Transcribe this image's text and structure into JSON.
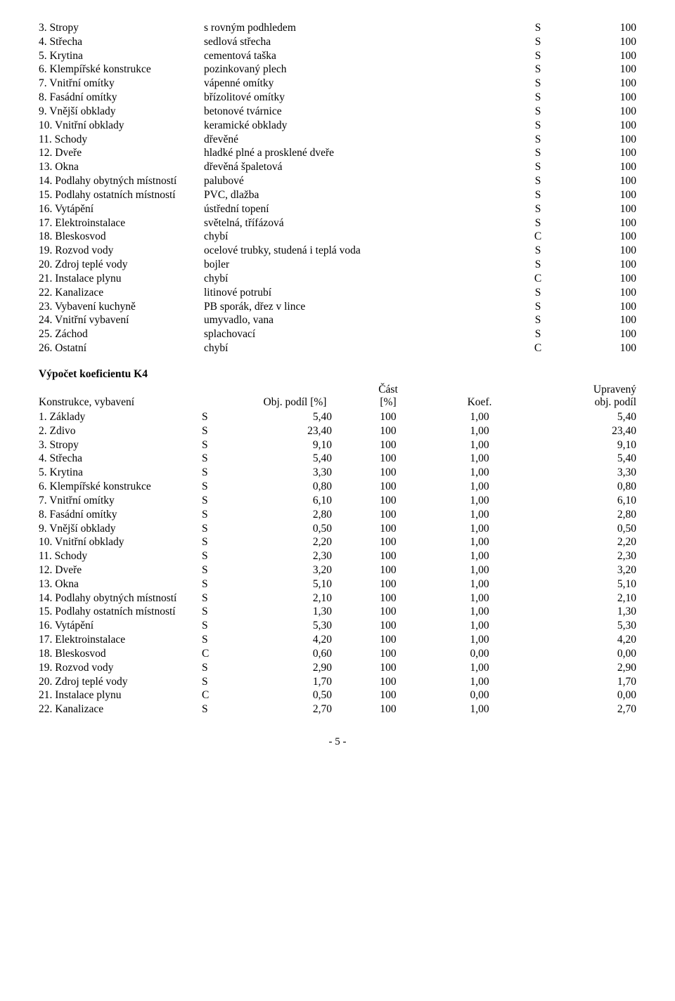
{
  "table1": {
    "rows": [
      {
        "n": "3. Stropy",
        "desc": "s rovným podhledem",
        "cls": "S",
        "val": "100"
      },
      {
        "n": "4. Střecha",
        "desc": "sedlová střecha",
        "cls": "S",
        "val": "100"
      },
      {
        "n": "5. Krytina",
        "desc": "cementová taška",
        "cls": "S",
        "val": "100"
      },
      {
        "n": "6. Klempířské konstrukce",
        "desc": "pozinkovaný plech",
        "cls": "S",
        "val": "100"
      },
      {
        "n": "7. Vnitřní omítky",
        "desc": "vápenné omítky",
        "cls": "S",
        "val": "100"
      },
      {
        "n": "8. Fasádní omítky",
        "desc": "břízolitové omítky",
        "cls": "S",
        "val": "100"
      },
      {
        "n": "9. Vnější obklady",
        "desc": "betonové tvárnice",
        "cls": "S",
        "val": "100"
      },
      {
        "n": "10. Vnitřní obklady",
        "desc": "keramické obklady",
        "cls": "S",
        "val": "100"
      },
      {
        "n": "11. Schody",
        "desc": "dřevěné",
        "cls": "S",
        "val": "100"
      },
      {
        "n": "12. Dveře",
        "desc": "hladké plné a prosklené dveře",
        "cls": "S",
        "val": "100"
      },
      {
        "n": "13. Okna",
        "desc": "dřevěná špaletová",
        "cls": "S",
        "val": "100"
      },
      {
        "n": "14. Podlahy obytných místností",
        "desc": "palubové",
        "cls": "S",
        "val": "100"
      },
      {
        "n": "15. Podlahy ostatních místností",
        "desc": "PVC, dlažba",
        "cls": "S",
        "val": "100"
      },
      {
        "n": "16. Vytápění",
        "desc": "ústřední topení",
        "cls": "S",
        "val": "100"
      },
      {
        "n": "17. Elektroinstalace",
        "desc": "světelná, třífázová",
        "cls": "S",
        "val": "100"
      },
      {
        "n": "18. Bleskosvod",
        "desc": "chybí",
        "cls": "C",
        "val": "100"
      },
      {
        "n": "19. Rozvod vody",
        "desc": "ocelové trubky, studená i teplá voda",
        "cls": "S",
        "val": "100"
      },
      {
        "n": "20. Zdroj teplé vody",
        "desc": "bojler",
        "cls": "S",
        "val": "100"
      },
      {
        "n": "21. Instalace plynu",
        "desc": "chybí",
        "cls": "C",
        "val": "100"
      },
      {
        "n": "22. Kanalizace",
        "desc": "litinové potrubí",
        "cls": "S",
        "val": "100"
      },
      {
        "n": "23. Vybavení kuchyně",
        "desc": "PB sporák, dřez v lince",
        "cls": "S",
        "val": "100"
      },
      {
        "n": "24. Vnitřní vybavení",
        "desc": "umyvadlo, vana",
        "cls": "S",
        "val": "100"
      },
      {
        "n": "25. Záchod",
        "desc": "splachovací",
        "cls": "S",
        "val": "100"
      },
      {
        "n": "26. Ostatní",
        "desc": "chybí",
        "cls": "C",
        "val": "100"
      }
    ]
  },
  "table2": {
    "heading": "Výpočet koeficientu K4",
    "header": {
      "c1": "Konstrukce, vybavení",
      "c3": "Obj. podíl [%]",
      "c4a": "Část",
      "c4b": "[%]",
      "c5": "Koef.",
      "c6a": "Upravený",
      "c6b": "obj. podíl"
    },
    "rows": [
      {
        "n": "1. Základy",
        "cls": "S",
        "v1": "5,40",
        "v2": "100",
        "v3": "1,00",
        "v4": "5,40"
      },
      {
        "n": "2. Zdivo",
        "cls": "S",
        "v1": "23,40",
        "v2": "100",
        "v3": "1,00",
        "v4": "23,40"
      },
      {
        "n": "3. Stropy",
        "cls": "S",
        "v1": "9,10",
        "v2": "100",
        "v3": "1,00",
        "v4": "9,10"
      },
      {
        "n": "4. Střecha",
        "cls": "S",
        "v1": "5,40",
        "v2": "100",
        "v3": "1,00",
        "v4": "5,40"
      },
      {
        "n": "5. Krytina",
        "cls": "S",
        "v1": "3,30",
        "v2": "100",
        "v3": "1,00",
        "v4": "3,30"
      },
      {
        "n": "6. Klempířské konstrukce",
        "cls": "S",
        "v1": "0,80",
        "v2": "100",
        "v3": "1,00",
        "v4": "0,80"
      },
      {
        "n": "7. Vnitřní omítky",
        "cls": "S",
        "v1": "6,10",
        "v2": "100",
        "v3": "1,00",
        "v4": "6,10"
      },
      {
        "n": "8. Fasádní omítky",
        "cls": "S",
        "v1": "2,80",
        "v2": "100",
        "v3": "1,00",
        "v4": "2,80"
      },
      {
        "n": "9. Vnější obklady",
        "cls": "S",
        "v1": "0,50",
        "v2": "100",
        "v3": "1,00",
        "v4": "0,50"
      },
      {
        "n": "10. Vnitřní obklady",
        "cls": "S",
        "v1": "2,20",
        "v2": "100",
        "v3": "1,00",
        "v4": "2,20"
      },
      {
        "n": "11. Schody",
        "cls": "S",
        "v1": "2,30",
        "v2": "100",
        "v3": "1,00",
        "v4": "2,30"
      },
      {
        "n": "12. Dveře",
        "cls": "S",
        "v1": "3,20",
        "v2": "100",
        "v3": "1,00",
        "v4": "3,20"
      },
      {
        "n": "13. Okna",
        "cls": "S",
        "v1": "5,10",
        "v2": "100",
        "v3": "1,00",
        "v4": "5,10"
      },
      {
        "n": "14. Podlahy obytných místností",
        "cls": "S",
        "v1": "2,10",
        "v2": "100",
        "v3": "1,00",
        "v4": "2,10"
      },
      {
        "n": "15. Podlahy ostatních místností",
        "cls": "S",
        "v1": "1,30",
        "v2": "100",
        "v3": "1,00",
        "v4": "1,30"
      },
      {
        "n": "16. Vytápění",
        "cls": "S",
        "v1": "5,30",
        "v2": "100",
        "v3": "1,00",
        "v4": "5,30"
      },
      {
        "n": "17. Elektroinstalace",
        "cls": "S",
        "v1": "4,20",
        "v2": "100",
        "v3": "1,00",
        "v4": "4,20"
      },
      {
        "n": "18. Bleskosvod",
        "cls": "C",
        "v1": "0,60",
        "v2": "100",
        "v3": "0,00",
        "v4": "0,00"
      },
      {
        "n": "19. Rozvod vody",
        "cls": "S",
        "v1": "2,90",
        "v2": "100",
        "v3": "1,00",
        "v4": "2,90"
      },
      {
        "n": "20. Zdroj teplé vody",
        "cls": "S",
        "v1": "1,70",
        "v2": "100",
        "v3": "1,00",
        "v4": "1,70"
      },
      {
        "n": "21. Instalace plynu",
        "cls": "C",
        "v1": "0,50",
        "v2": "100",
        "v3": "0,00",
        "v4": "0,00"
      },
      {
        "n": "22. Kanalizace",
        "cls": "S",
        "v1": "2,70",
        "v2": "100",
        "v3": "1,00",
        "v4": "2,70"
      }
    ]
  },
  "pagenum": "- 5 -"
}
